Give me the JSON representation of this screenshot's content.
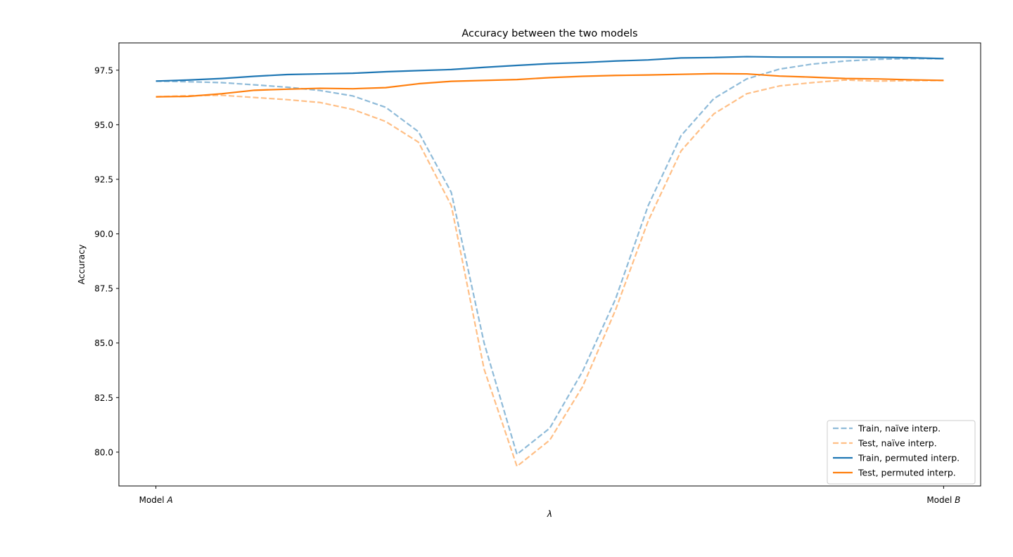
{
  "chart_data": {
    "type": "line",
    "title": "Accuracy between the two models",
    "xlabel": "λ",
    "ylabel": "Accuracy",
    "xticks": [
      {
        "value": 0,
        "prefix": "Model ",
        "var": "A"
      },
      {
        "value": 1,
        "prefix": "Model ",
        "var": "B"
      }
    ],
    "yticks": [
      "80.0",
      "82.5",
      "85.0",
      "87.5",
      "90.0",
      "92.5",
      "95.0",
      "97.5"
    ],
    "xlim": [
      -0.047,
      1.047
    ],
    "ylim": [
      78.45,
      98.75
    ],
    "grid": false,
    "legend_position": "lower-right",
    "x": [
      0,
      0.04167,
      0.08333,
      0.125,
      0.16667,
      0.20833,
      0.25,
      0.29167,
      0.33333,
      0.375,
      0.41667,
      0.45833,
      0.5,
      0.54167,
      0.58333,
      0.625,
      0.66667,
      0.70833,
      0.75,
      0.79167,
      0.83333,
      0.875,
      0.91667,
      0.95833,
      1
    ],
    "series": [
      {
        "name": "Train, naïve interp.",
        "color": "#1f77b4",
        "style": "dashed",
        "alpha": 0.5,
        "values": [
          97.0,
          96.97,
          96.93,
          96.83,
          96.72,
          96.57,
          96.32,
          95.8,
          94.68,
          91.9,
          85.0,
          79.9,
          81.1,
          83.7,
          87.0,
          91.3,
          94.5,
          96.2,
          97.1,
          97.55,
          97.78,
          97.92,
          98.0,
          98.03,
          98.03
        ]
      },
      {
        "name": "Test, naïve interp.",
        "color": "#ff7f0e",
        "style": "dashed",
        "alpha": 0.5,
        "values": [
          96.28,
          96.33,
          96.35,
          96.25,
          96.15,
          96.02,
          95.7,
          95.15,
          94.2,
          91.3,
          83.8,
          79.35,
          80.55,
          83.0,
          86.5,
          90.6,
          93.8,
          95.5,
          96.42,
          96.78,
          96.93,
          97.05,
          97.0,
          97.02,
          97.03
        ]
      },
      {
        "name": "Train, permuted interp.",
        "color": "#1f77b4",
        "style": "solid",
        "alpha": 1,
        "values": [
          97.0,
          97.05,
          97.12,
          97.22,
          97.3,
          97.33,
          97.36,
          97.43,
          97.48,
          97.53,
          97.63,
          97.72,
          97.8,
          97.85,
          97.92,
          97.97,
          98.06,
          98.08,
          98.12,
          98.1,
          98.1,
          98.1,
          98.09,
          98.07,
          98.03
        ]
      },
      {
        "name": "Test, permuted interp.",
        "color": "#ff7f0e",
        "style": "solid",
        "alpha": 1,
        "values": [
          96.28,
          96.3,
          96.42,
          96.58,
          96.63,
          96.67,
          96.65,
          96.7,
          96.88,
          96.99,
          97.03,
          97.07,
          97.16,
          97.22,
          97.26,
          97.28,
          97.31,
          97.34,
          97.33,
          97.23,
          97.18,
          97.12,
          97.1,
          97.06,
          97.03
        ]
      }
    ]
  }
}
